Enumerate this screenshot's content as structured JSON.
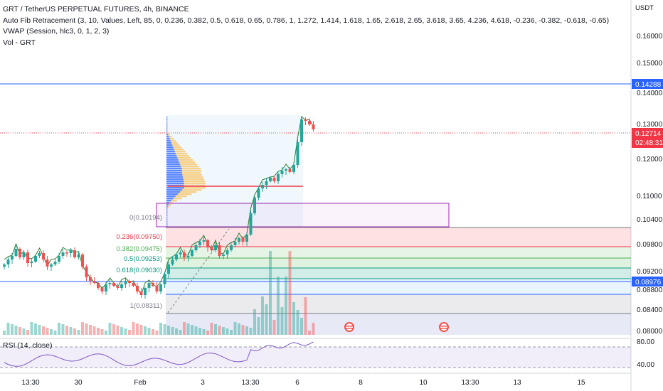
{
  "legend": {
    "symbol": "GRT / TetherUS PERPETUAL FUTURES, 4h, BINANCE",
    "fib": "Auto Fib Retracement (3, 10, Values, Left, 85, 0, 0.236, 0.382, 0.5, 0.618, 0.65, 0.786, 1, 1.272, 1.414, 1.618, 1.65, 2.618, 2.65, 3.618, 3.65, 4.236, 4.618, -0.236, -0.382, -0.618, -0.65)",
    "vwap": "VWAP (Session, hlc3, 0, 1, 2, 3)",
    "vol": "Vol - GRT"
  },
  "price_axis": {
    "currency": "USDT",
    "ticks": [
      "0.16000",
      "0.15000",
      "0.14000",
      "0.13000",
      "0.12000",
      "0.11000",
      "0.10400",
      "0.09800",
      "0.09200",
      "0.08800",
      "0.08400",
      "0.08000"
    ],
    "tags": [
      {
        "text": "0.14288",
        "color": "#2962ff"
      },
      {
        "text": "0.12714",
        "color": "#f23645"
      },
      {
        "text": "02:48:31",
        "color": "#f23645"
      },
      {
        "text": "0.08976",
        "color": "#2962ff"
      }
    ]
  },
  "fib_labels": [
    {
      "text": "0(0.10194)",
      "color": "#787b86"
    },
    {
      "text": "0.236(0.09750)",
      "color": "#f23645"
    },
    {
      "text": "0.382(0.09475)",
      "color": "#4caf50"
    },
    {
      "text": "0.5(0.09253)",
      "color": "#089981"
    },
    {
      "text": "0.618(0.09030)",
      "color": "#089981"
    },
    {
      "text": "1(0.08311)",
      "color": "#787b86"
    }
  ],
  "rsi": {
    "label": "RSI (14, close)",
    "ticks": [
      "80.00",
      "40.00"
    ]
  },
  "time_axis": {
    "ticks": [
      "13:30",
      "30",
      "Feb",
      "3",
      "13:30",
      "6",
      "8",
      "10",
      "13:30",
      "13",
      "15"
    ]
  },
  "colors": {
    "up": "#26a69a",
    "down": "#ef5350",
    "accent_blue": "#2962ff",
    "rsi_line": "#7e57c2"
  }
}
